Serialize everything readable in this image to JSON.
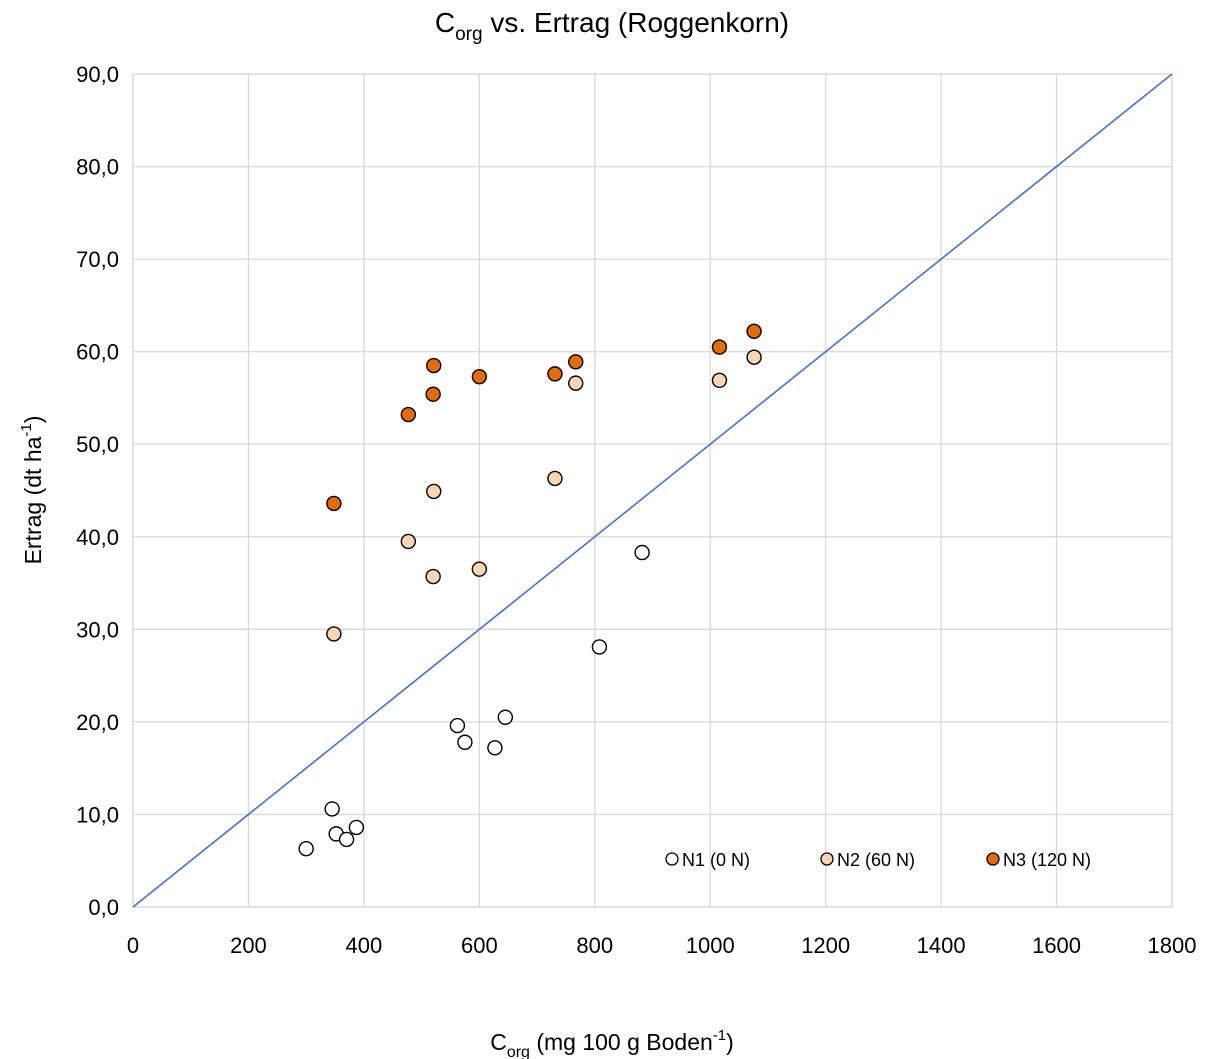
{
  "chart_data": {
    "type": "scatter",
    "title": {
      "base": "C",
      "sub": "org",
      "rest": " vs. Ertrag (Roggenkorn)"
    },
    "xlabel": {
      "base": "C",
      "sub": "org",
      "rest": " (mg 100 g Boden",
      "sup": "-1",
      "end": ")"
    },
    "ylabel": {
      "base": "Ertrag (dt ha",
      "sup": "-1",
      "end": ")"
    },
    "xlim": [
      0,
      1800
    ],
    "ylim": [
      0,
      90
    ],
    "x_ticks": [
      "0",
      "200",
      "400",
      "600",
      "800",
      "1000",
      "1200",
      "1400",
      "1600",
      "1800"
    ],
    "y_ticks": [
      "0,0",
      "10,0",
      "20,0",
      "30,0",
      "40,0",
      "50,0",
      "60,0",
      "70,0",
      "80,0",
      "90,0"
    ],
    "grid": true,
    "legend_position": "bottom-right",
    "reference_line": {
      "from": [
        0,
        0
      ],
      "to": [
        1800,
        90
      ],
      "color": "#4472c4"
    },
    "series": [
      {
        "name": "N1 (0 N)",
        "fill": "#ffffff",
        "points": [
          [
            300,
            6.3
          ],
          [
            345,
            10.6
          ],
          [
            352,
            7.9
          ],
          [
            370,
            7.3
          ],
          [
            387,
            8.6
          ],
          [
            562,
            19.6
          ],
          [
            575,
            17.8
          ],
          [
            627,
            17.2
          ],
          [
            645,
            20.5
          ],
          [
            808,
            28.1
          ],
          [
            882,
            38.3
          ]
        ]
      },
      {
        "name": "N2 (60 N)",
        "fill": "#fbd5b5",
        "points": [
          [
            348,
            29.5
          ],
          [
            477,
            39.5
          ],
          [
            520,
            35.7
          ],
          [
            521,
            44.9
          ],
          [
            600,
            36.5
          ],
          [
            731,
            46.3
          ],
          [
            767,
            56.6
          ],
          [
            1016,
            56.9
          ],
          [
            1076,
            59.4
          ]
        ]
      },
      {
        "name": "N3 (120 N)",
        "fill": "#e36c0a",
        "points": [
          [
            348,
            43.6
          ],
          [
            477,
            53.2
          ],
          [
            520,
            55.4
          ],
          [
            521,
            58.5
          ],
          [
            600,
            57.3
          ],
          [
            731,
            57.6
          ],
          [
            767,
            58.9
          ],
          [
            1016,
            60.5
          ],
          [
            1076,
            62.2
          ]
        ]
      }
    ]
  }
}
